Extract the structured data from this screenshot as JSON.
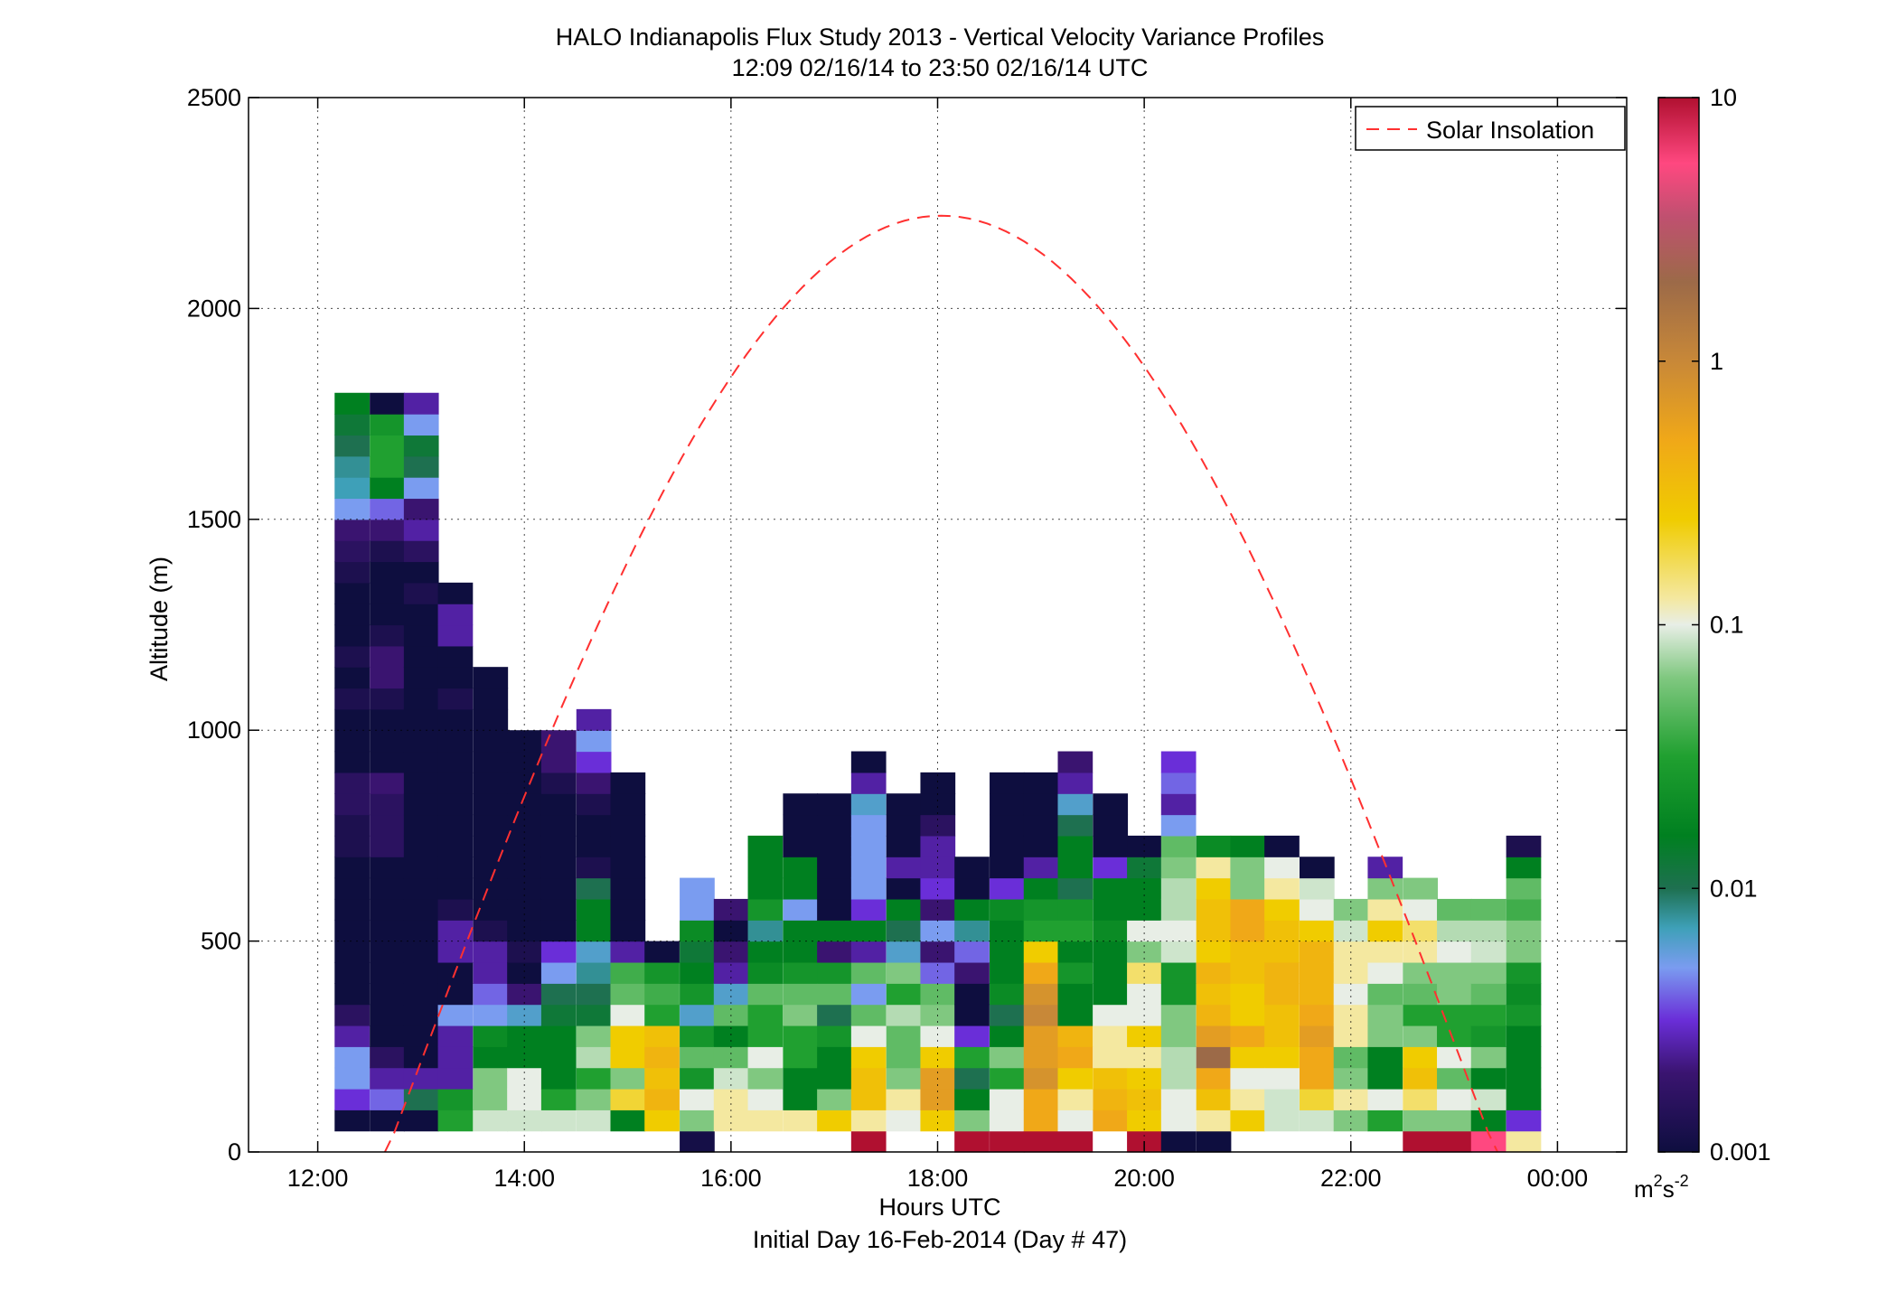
{
  "chart_data": {
    "type": "heatmap",
    "title": "HALO Indianapolis Flux Study 2013 - Vertical Velocity Variance Profiles",
    "subtitle": "12:09 02/16/14 to 23:50 02/16/14  UTC",
    "xlabel": "Hours UTC",
    "xlabel2": "Initial Day 16-Feb-2014 (Day # 47)",
    "ylabel": "Altitude (m)",
    "x_ticks": [
      12,
      14,
      16,
      18,
      20,
      22,
      24
    ],
    "x_tick_labels": [
      "12:00",
      "14:00",
      "16:00",
      "18:00",
      "20:00",
      "22:00",
      "00:00"
    ],
    "xlim": [
      11.33,
      24.67
    ],
    "y_ticks": [
      0,
      500,
      1000,
      1500,
      2000,
      2500
    ],
    "y_tick_labels": [
      "0",
      "500",
      "1000",
      "1500",
      "2000",
      "2500"
    ],
    "ylim": [
      0,
      2500
    ],
    "grid": true,
    "legend": {
      "position": "top-right",
      "entries": [
        {
          "name": "Solar Insolation",
          "style": "dashed",
          "color": "#ff3030"
        }
      ]
    },
    "colorbar": {
      "scale": "log",
      "range": [
        0.001,
        10
      ],
      "tick_values": [
        0.001,
        0.01,
        0.1,
        1,
        10
      ],
      "tick_labels": [
        "0.001",
        "0.01",
        "0.1",
        "1",
        "10"
      ],
      "unit_base": "m",
      "unit_mid": "2",
      "unit_s": "s",
      "unit_exp": "-2",
      "stops": [
        {
          "v": -3.0,
          "color": "#0e0e3f"
        },
        {
          "v": -2.7,
          "color": "#3a1470"
        },
        {
          "v": -2.5,
          "color": "#6a2ed8"
        },
        {
          "v": -2.3,
          "color": "#7a9cf0"
        },
        {
          "v": -2.15,
          "color": "#3ea0b8"
        },
        {
          "v": -2.0,
          "color": "#1e7050"
        },
        {
          "v": -1.8,
          "color": "#008020"
        },
        {
          "v": -1.5,
          "color": "#20a030"
        },
        {
          "v": -1.2,
          "color": "#80c880"
        },
        {
          "v": -1.0,
          "color": "#e8eee6"
        },
        {
          "v": -0.9,
          "color": "#f4e8a0"
        },
        {
          "v": -0.6,
          "color": "#f0cc00"
        },
        {
          "v": -0.3,
          "color": "#f0a818"
        },
        {
          "v": 0.0,
          "color": "#c88838"
        },
        {
          "v": 0.3,
          "color": "#9c6a48"
        },
        {
          "v": 0.55,
          "color": "#c05070"
        },
        {
          "v": 0.75,
          "color": "#ff4880"
        },
        {
          "v": 1.0,
          "color": "#b01030"
        }
      ]
    },
    "solar_insolation": {
      "sunrise": 12.67,
      "sunset": 23.4,
      "peak_time": 17.96,
      "peak_altitude": 2220
    },
    "bin_height_m": 50,
    "profiles": [
      {
        "t": 12.33,
        "base": 50,
        "v": [
          -3,
          -2.5,
          -2.3,
          -2.3,
          -2.6,
          -2.8,
          -3,
          -3,
          -3,
          -3,
          -3,
          -3,
          -3,
          -2.9,
          -2.9,
          -2.8,
          -2.8,
          -3,
          -3,
          -3,
          -2.9,
          -3,
          -2.9,
          -3,
          -3,
          -3,
          -2.9,
          -2.8,
          -2.7,
          -2.3,
          -2.15,
          -2.1,
          -2.0,
          -1.9,
          -1.8
        ]
      },
      {
        "t": 12.67,
        "base": 50,
        "v": [
          -3,
          -2.4,
          -2.6,
          -2.8,
          -3,
          -3,
          -3,
          -3,
          -3,
          -3,
          -3,
          -3,
          -3,
          -2.8,
          -2.8,
          -2.8,
          -2.7,
          -3,
          -3,
          -3,
          -2.9,
          -2.7,
          -2.7,
          -2.9,
          -3,
          -3,
          -3,
          -2.9,
          -2.7,
          -2.4,
          -1.8,
          -1.5,
          -1.5,
          -1.6,
          -3
        ]
      },
      {
        "t": 13.0,
        "base": 50,
        "v": [
          -3,
          -2.0,
          -2.6,
          -3,
          -3,
          -3,
          -3,
          -3,
          -3,
          -3,
          -3,
          -3,
          -3,
          -3,
          -3,
          -3,
          -3,
          -3,
          -3,
          -3,
          -3,
          -3,
          -3,
          -3,
          -3,
          -2.9,
          -3,
          -2.8,
          -2.6,
          -2.7,
          -2.3,
          -2.0,
          -1.9,
          -2.3,
          -2.6
        ]
      },
      {
        "t": 13.33,
        "base": 50,
        "v": [
          -1.5,
          -1.6,
          -2.6,
          -2.6,
          -2.6,
          -2.3,
          -3,
          -3,
          -2.6,
          -2.6,
          -2.9,
          -3,
          -3,
          -3,
          -3,
          -3,
          -3,
          -3,
          -3,
          -3,
          -2.9,
          -3,
          -3,
          -2.6,
          -2.6,
          -3
        ]
      },
      {
        "t": 13.67,
        "base": 50,
        "v": [
          -1.05,
          -1.2,
          -1.2,
          -1.8,
          -1.7,
          -2.3,
          -2.4,
          -2.6,
          -2.6,
          -2.9,
          -3,
          -3,
          -3,
          -3,
          -3,
          -3,
          -3,
          -3,
          -3,
          -3,
          -3,
          -3
        ]
      },
      {
        "t": 14.0,
        "base": 50,
        "v": [
          -1.05,
          -1.0,
          -1.0,
          -1.8,
          -1.8,
          -2.2,
          -2.7,
          -3,
          -2.9,
          -3,
          -3,
          -3,
          -3,
          -3,
          -3,
          -3,
          -3,
          -3,
          -3
        ]
      },
      {
        "t": 14.33,
        "base": 50,
        "v": [
          -1.05,
          -1.5,
          -1.8,
          -1.8,
          -1.8,
          -1.9,
          -2.0,
          -2.3,
          -2.5,
          -3,
          -3,
          -3,
          -3,
          -3,
          -3,
          -3,
          -2.9,
          -2.7,
          -2.7
        ]
      },
      {
        "t": 14.67,
        "base": 50,
        "v": [
          -1.05,
          -1.2,
          -1.5,
          -1.1,
          -1.2,
          -1.9,
          -2.0,
          -2.1,
          -2.2,
          -1.8,
          -1.8,
          -2.0,
          -2.9,
          -3,
          -3,
          -2.9,
          -2.7,
          -2.5,
          -2.3,
          -2.6
        ]
      },
      {
        "t": 15.0,
        "base": 50,
        "v": [
          -1.8,
          -0.7,
          -1.2,
          -0.6,
          -0.6,
          -1.0,
          -1.3,
          -1.4,
          -2.6,
          -3,
          -3,
          -3,
          -3,
          -3,
          -3,
          -3,
          -3
        ]
      },
      {
        "t": 15.33,
        "base": 50,
        "v": [
          -0.6,
          -0.4,
          -0.5,
          -0.4,
          -0.5,
          -1.5,
          -1.4,
          -1.6,
          -3
        ]
      },
      {
        "t": 15.67,
        "base": 0,
        "v": [
          -2.95,
          -1.2,
          -1.0,
          -1.6,
          -1.3,
          -1.6,
          -2.2,
          -1.6,
          -1.8,
          -1.9,
          -1.7,
          -2.3,
          -2.3
        ]
      },
      {
        "t": 16.0,
        "base": 50,
        "v": [
          -0.9,
          -0.9,
          -1.05,
          -1.3,
          -1.8,
          -1.3,
          -2.2,
          -2.6,
          -2.7,
          -3,
          -2.7
        ]
      },
      {
        "t": 16.33,
        "base": 50,
        "v": [
          -0.9,
          -1.0,
          -1.2,
          -1.0,
          -1.5,
          -1.5,
          -1.3,
          -1.7,
          -1.8,
          -2.1,
          -1.6,
          -1.8,
          -1.8,
          -1.8
        ]
      },
      {
        "t": 16.67,
        "base": 50,
        "v": [
          -0.9,
          -1.8,
          -1.8,
          -1.5,
          -1.5,
          -1.2,
          -1.3,
          -1.6,
          -1.8,
          -1.8,
          -2.3,
          -1.8,
          -1.8,
          -3,
          -3,
          -3
        ]
      },
      {
        "t": 17.0,
        "base": 50,
        "v": [
          -0.6,
          -1.2,
          -1.8,
          -1.8,
          -1.6,
          -2.0,
          -1.3,
          -1.6,
          -2.7,
          -1.8,
          -3,
          -3,
          -3,
          -3,
          -3,
          -3
        ]
      },
      {
        "t": 17.33,
        "base": 0,
        "v": [
          1.0,
          -0.9,
          -0.5,
          -0.5,
          -0.6,
          -1.0,
          -1.3,
          -2.3,
          -1.3,
          -2.6,
          -1.8,
          -2.5,
          -2.3,
          -2.3,
          -2.3,
          -2.3,
          -2.2,
          -2.6,
          -3
        ]
      },
      {
        "t": 17.67,
        "base": 50,
        "v": [
          -1.0,
          -0.9,
          -1.2,
          -1.3,
          -1.3,
          -1.1,
          -1.5,
          -1.2,
          -2.2,
          -2.0,
          -1.8,
          -3,
          -2.6,
          -3,
          -3,
          -3
        ]
      },
      {
        "t": 18.0,
        "base": 50,
        "v": [
          -0.6,
          -0.2,
          -0.2,
          -0.6,
          -1.0,
          -1.2,
          -1.3,
          -2.4,
          -2.7,
          -2.3,
          -2.7,
          -2.5,
          -2.6,
          -2.6,
          -2.8,
          -3,
          -3
        ]
      },
      {
        "t": 18.33,
        "base": 0,
        "v": [
          1.0,
          -1.2,
          -1.8,
          -2.0,
          -1.5,
          -2.5,
          -3,
          -3,
          -2.7,
          -2.4,
          -2.1,
          -1.8,
          -3,
          -3
        ]
      },
      {
        "t": 18.67,
        "base": 0,
        "v": [
          1.0,
          -1.0,
          -1.0,
          -1.5,
          -1.2,
          -1.8,
          -2.0,
          -1.7,
          -1.8,
          -1.8,
          -1.8,
          -1.7,
          -2.5,
          -3,
          -3,
          -3,
          -3,
          -3
        ]
      },
      {
        "t": 19.0,
        "base": 0,
        "v": [
          1.0,
          -0.3,
          -0.3,
          -0.1,
          -0.2,
          -0.2,
          0.0,
          -0.1,
          -0.3,
          -0.6,
          -1.5,
          -1.6,
          -1.8,
          -2.6,
          -3,
          -3,
          -3,
          -3
        ]
      },
      {
        "t": 19.33,
        "base": 0,
        "v": [
          1.0,
          -1.0,
          -0.9,
          -0.6,
          -0.3,
          -0.4,
          -1.8,
          -1.8,
          -1.6,
          -1.8,
          -1.5,
          -1.6,
          -2.0,
          -1.8,
          -1.8,
          -2.0,
          -2.2,
          -2.6,
          -2.7
        ]
      },
      {
        "t": 19.67,
        "base": 50,
        "v": [
          -0.3,
          -0.4,
          -0.5,
          -0.9,
          -0.9,
          -1.0,
          -1.8,
          -1.8,
          -1.8,
          -1.7,
          -1.8,
          -1.8,
          -2.5,
          -3,
          -3,
          -3
        ]
      },
      {
        "t": 20.0,
        "base": 0,
        "v": [
          1.0,
          -0.6,
          -0.5,
          -0.6,
          -0.9,
          -0.6,
          -1.0,
          -1.0,
          -0.8,
          -1.2,
          -1.0,
          -1.8,
          -1.8,
          -1.9,
          -3
        ]
      },
      {
        "t": 20.33,
        "base": 0,
        "v": [
          -3,
          -1.0,
          -1.0,
          -1.1,
          -1.1,
          -1.2,
          -1.2,
          -1.6,
          -1.6,
          -1.05,
          -1.0,
          -1.1,
          -1.1,
          -1.2,
          -1.3,
          -2.3,
          -2.6,
          -2.4,
          -2.5
        ]
      },
      {
        "t": 20.67,
        "base": 0,
        "v": [
          -3,
          -0.9,
          -0.5,
          -0.3,
          0.3,
          -0.2,
          -0.4,
          -0.5,
          -0.4,
          -0.6,
          -0.5,
          -0.5,
          -0.6,
          -0.9,
          -1.7
        ]
      },
      {
        "t": 21.0,
        "base": 50,
        "v": [
          -0.6,
          -0.9,
          -1.0,
          -0.6,
          -0.3,
          -0.6,
          -0.6,
          -0.5,
          -0.5,
          -0.3,
          -0.3,
          -1.2,
          -1.2,
          -1.8
        ]
      },
      {
        "t": 21.33,
        "base": 50,
        "v": [
          -1.05,
          -1.05,
          -1.0,
          -0.6,
          -0.5,
          -0.5,
          -0.4,
          -0.4,
          -0.5,
          -0.5,
          -0.6,
          -0.9,
          -1.0,
          -3
        ]
      },
      {
        "t": 21.67,
        "base": 50,
        "v": [
          -1.05,
          -0.7,
          -0.3,
          -0.3,
          -0.2,
          -0.3,
          -0.4,
          -0.4,
          -0.4,
          -0.6,
          -1.0,
          -1.05,
          -3
        ]
      },
      {
        "t": 22.0,
        "base": 50,
        "v": [
          -1.2,
          -0.9,
          -1.2,
          -1.3,
          -0.9,
          -0.9,
          -1.0,
          -0.9,
          -0.9,
          -1.05,
          -1.2
        ]
      },
      {
        "t": 22.33,
        "base": 50,
        "v": [
          -1.5,
          -1.0,
          -1.8,
          -1.8,
          -1.2,
          -1.2,
          -1.3,
          -1.0,
          -0.9,
          -0.6,
          -0.9,
          -1.2,
          -2.6
        ]
      },
      {
        "t": 22.67,
        "base": 0,
        "v": [
          1.0,
          -1.2,
          -0.8,
          -0.5,
          -0.6,
          -1.2,
          -1.5,
          -1.3,
          -1.2,
          -0.9,
          -0.8,
          -1.0,
          -1.2
        ]
      },
      {
        "t": 23.0,
        "base": 0,
        "v": [
          1.0,
          -1.2,
          -1.0,
          -1.3,
          -1.0,
          -1.5,
          -1.5,
          -1.2,
          -1.2,
          -1.0,
          -1.1,
          -1.3
        ]
      },
      {
        "t": 23.33,
        "base": 0,
        "v": [
          0.75,
          -1.8,
          -1.05,
          -1.8,
          -1.2,
          -1.6,
          -1.5,
          -1.3,
          -1.2,
          -1.05,
          -1.1,
          -1.3
        ]
      },
      {
        "t": 23.67,
        "base": 0,
        "v": [
          -0.9,
          -2.5,
          -1.8,
          -1.8,
          -1.8,
          -1.8,
          -1.6,
          -1.7,
          -1.6,
          -1.2,
          -1.2,
          -1.4,
          -1.3,
          -1.8,
          -2.9
        ]
      }
    ]
  }
}
